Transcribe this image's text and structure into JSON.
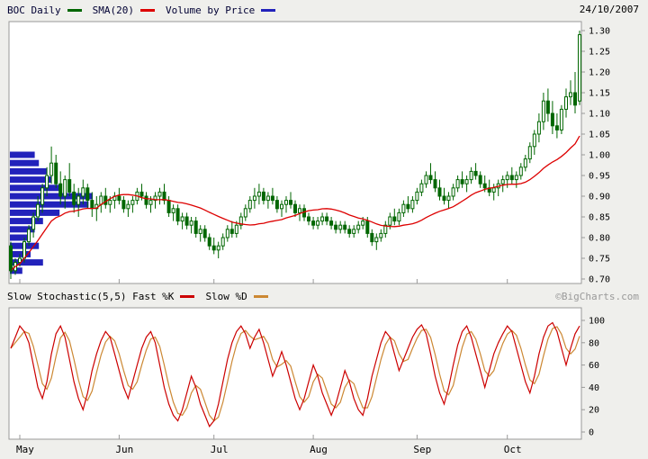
{
  "legend": {
    "symbol": "BOC Daily",
    "sma": "SMA(20)",
    "vbp": "Volume by Price",
    "date": "24/10/2007",
    "stoch": "Slow Stochastic(5,5) Fast %K",
    "slowd": "Slow %D",
    "credit": "©BigCharts.com"
  },
  "colors": {
    "candle": "#006600",
    "sma": "#dd0000",
    "vbp": "#2222bb",
    "stoch_k": "#cc0000",
    "stoch_d": "#cc8833",
    "border": "#999999",
    "plot_bg": "#ffffff",
    "page_bg": "#efefec",
    "axis_text": "#000000"
  },
  "chart_data": [
    {
      "type": "candlestick",
      "title": "BOC Daily with SMA(20) and Volume by Price",
      "ylim": [
        0.7,
        1.3
      ],
      "y_ticks": [
        1.3,
        1.25,
        1.2,
        1.15,
        1.1,
        1.05,
        1.0,
        0.95,
        0.9,
        0.85,
        0.8,
        0.75,
        0.7
      ],
      "sma_window": 20,
      "months": [
        {
          "label": "May",
          "index": 2
        },
        {
          "label": "Jun",
          "index": 24
        },
        {
          "label": "Jul",
          "index": 45
        },
        {
          "label": "Aug",
          "index": 67
        },
        {
          "label": "Sep",
          "index": 90
        },
        {
          "label": "Oct",
          "index": 110
        }
      ],
      "annotations": [
        {
          "type": "arrow-down",
          "index": 0,
          "price": 0.725
        }
      ],
      "vbp": [
        {
          "p": 1.0,
          "v": 0.3
        },
        {
          "p": 0.98,
          "v": 0.35
        },
        {
          "p": 0.96,
          "v": 0.45
        },
        {
          "p": 0.94,
          "v": 0.5
        },
        {
          "p": 0.92,
          "v": 0.6
        },
        {
          "p": 0.9,
          "v": 1.0
        },
        {
          "p": 0.88,
          "v": 0.95
        },
        {
          "p": 0.86,
          "v": 0.6
        },
        {
          "p": 0.84,
          "v": 0.4
        },
        {
          "p": 0.82,
          "v": 0.3
        },
        {
          "p": 0.8,
          "v": 0.25
        },
        {
          "p": 0.78,
          "v": 0.35
        },
        {
          "p": 0.76,
          "v": 0.25
        },
        {
          "p": 0.74,
          "v": 0.4
        },
        {
          "p": 0.72,
          "v": 0.15
        }
      ],
      "candles": [
        [
          0.78,
          0.79,
          0.7,
          0.72
        ],
        [
          0.72,
          0.75,
          0.71,
          0.74
        ],
        [
          0.74,
          0.76,
          0.73,
          0.75
        ],
        [
          0.75,
          0.8,
          0.74,
          0.79
        ],
        [
          0.79,
          0.83,
          0.78,
          0.82
        ],
        [
          0.82,
          0.86,
          0.8,
          0.85
        ],
        [
          0.85,
          0.9,
          0.84,
          0.88
        ],
        [
          0.88,
          0.93,
          0.86,
          0.92
        ],
        [
          0.92,
          0.97,
          0.9,
          0.95
        ],
        [
          0.95,
          1.02,
          0.93,
          0.98
        ],
        [
          0.98,
          1.0,
          0.92,
          0.93
        ],
        [
          0.93,
          0.96,
          0.88,
          0.9
        ],
        [
          0.9,
          0.95,
          0.87,
          0.94
        ],
        [
          0.94,
          0.98,
          0.9,
          0.91
        ],
        [
          0.91,
          0.93,
          0.86,
          0.88
        ],
        [
          0.88,
          0.92,
          0.85,
          0.9
        ],
        [
          0.9,
          0.94,
          0.88,
          0.92
        ],
        [
          0.92,
          0.93,
          0.87,
          0.89
        ],
        [
          0.89,
          0.91,
          0.85,
          0.87
        ],
        [
          0.87,
          0.9,
          0.84,
          0.88
        ],
        [
          0.88,
          0.91,
          0.86,
          0.9
        ],
        [
          0.9,
          0.92,
          0.87,
          0.88
        ],
        [
          0.88,
          0.9,
          0.86,
          0.89
        ],
        [
          0.89,
          0.91,
          0.87,
          0.9
        ],
        [
          0.9,
          0.92,
          0.88,
          0.89
        ],
        [
          0.89,
          0.9,
          0.86,
          0.87
        ],
        [
          0.87,
          0.89,
          0.85,
          0.88
        ],
        [
          0.88,
          0.9,
          0.86,
          0.89
        ],
        [
          0.89,
          0.92,
          0.88,
          0.91
        ],
        [
          0.91,
          0.93,
          0.89,
          0.9
        ],
        [
          0.9,
          0.91,
          0.87,
          0.88
        ],
        [
          0.88,
          0.9,
          0.86,
          0.89
        ],
        [
          0.89,
          0.91,
          0.87,
          0.9
        ],
        [
          0.9,
          0.92,
          0.88,
          0.91
        ],
        [
          0.91,
          0.93,
          0.88,
          0.89
        ],
        [
          0.89,
          0.9,
          0.85,
          0.86
        ],
        [
          0.86,
          0.88,
          0.84,
          0.87
        ],
        [
          0.87,
          0.88,
          0.83,
          0.84
        ],
        [
          0.84,
          0.86,
          0.82,
          0.85
        ],
        [
          0.85,
          0.86,
          0.82,
          0.83
        ],
        [
          0.83,
          0.85,
          0.81,
          0.84
        ],
        [
          0.84,
          0.85,
          0.8,
          0.81
        ],
        [
          0.81,
          0.83,
          0.79,
          0.82
        ],
        [
          0.82,
          0.83,
          0.79,
          0.8
        ],
        [
          0.8,
          0.81,
          0.77,
          0.78
        ],
        [
          0.78,
          0.8,
          0.76,
          0.77
        ],
        [
          0.77,
          0.79,
          0.75,
          0.78
        ],
        [
          0.78,
          0.81,
          0.77,
          0.8
        ],
        [
          0.8,
          0.83,
          0.79,
          0.82
        ],
        [
          0.82,
          0.84,
          0.8,
          0.81
        ],
        [
          0.81,
          0.84,
          0.8,
          0.83
        ],
        [
          0.83,
          0.86,
          0.82,
          0.85
        ],
        [
          0.85,
          0.88,
          0.84,
          0.87
        ],
        [
          0.87,
          0.9,
          0.86,
          0.89
        ],
        [
          0.89,
          0.92,
          0.87,
          0.9
        ],
        [
          0.9,
          0.93,
          0.88,
          0.91
        ],
        [
          0.91,
          0.92,
          0.88,
          0.89
        ],
        [
          0.89,
          0.91,
          0.87,
          0.9
        ],
        [
          0.9,
          0.92,
          0.88,
          0.89
        ],
        [
          0.89,
          0.9,
          0.86,
          0.87
        ],
        [
          0.87,
          0.89,
          0.85,
          0.88
        ],
        [
          0.88,
          0.9,
          0.86,
          0.89
        ],
        [
          0.89,
          0.91,
          0.87,
          0.88
        ],
        [
          0.88,
          0.89,
          0.85,
          0.86
        ],
        [
          0.86,
          0.88,
          0.84,
          0.87
        ],
        [
          0.87,
          0.88,
          0.84,
          0.85
        ],
        [
          0.85,
          0.86,
          0.83,
          0.84
        ],
        [
          0.84,
          0.85,
          0.82,
          0.83
        ],
        [
          0.83,
          0.85,
          0.82,
          0.84
        ],
        [
          0.84,
          0.86,
          0.83,
          0.85
        ],
        [
          0.85,
          0.86,
          0.83,
          0.84
        ],
        [
          0.84,
          0.85,
          0.82,
          0.83
        ],
        [
          0.83,
          0.84,
          0.81,
          0.82
        ],
        [
          0.82,
          0.84,
          0.81,
          0.83
        ],
        [
          0.83,
          0.84,
          0.81,
          0.82
        ],
        [
          0.82,
          0.83,
          0.8,
          0.81
        ],
        [
          0.81,
          0.83,
          0.8,
          0.82
        ],
        [
          0.82,
          0.84,
          0.81,
          0.83
        ],
        [
          0.83,
          0.85,
          0.82,
          0.84
        ],
        [
          0.84,
          0.85,
          0.8,
          0.81
        ],
        [
          0.81,
          0.82,
          0.78,
          0.79
        ],
        [
          0.79,
          0.81,
          0.77,
          0.8
        ],
        [
          0.8,
          0.82,
          0.79,
          0.81
        ],
        [
          0.81,
          0.84,
          0.8,
          0.83
        ],
        [
          0.83,
          0.86,
          0.82,
          0.85
        ],
        [
          0.85,
          0.87,
          0.83,
          0.84
        ],
        [
          0.84,
          0.87,
          0.83,
          0.86
        ],
        [
          0.86,
          0.89,
          0.85,
          0.88
        ],
        [
          0.88,
          0.9,
          0.86,
          0.87
        ],
        [
          0.87,
          0.9,
          0.86,
          0.89
        ],
        [
          0.89,
          0.92,
          0.88,
          0.91
        ],
        [
          0.91,
          0.94,
          0.9,
          0.93
        ],
        [
          0.93,
          0.96,
          0.92,
          0.95
        ],
        [
          0.95,
          0.98,
          0.93,
          0.94
        ],
        [
          0.94,
          0.96,
          0.91,
          0.92
        ],
        [
          0.92,
          0.94,
          0.89,
          0.9
        ],
        [
          0.9,
          0.92,
          0.88,
          0.89
        ],
        [
          0.89,
          0.91,
          0.87,
          0.9
        ],
        [
          0.9,
          0.93,
          0.89,
          0.92
        ],
        [
          0.92,
          0.95,
          0.91,
          0.94
        ],
        [
          0.94,
          0.96,
          0.92,
          0.93
        ],
        [
          0.93,
          0.95,
          0.91,
          0.94
        ],
        [
          0.94,
          0.97,
          0.93,
          0.96
        ],
        [
          0.96,
          0.98,
          0.94,
          0.95
        ],
        [
          0.95,
          0.96,
          0.92,
          0.93
        ],
        [
          0.93,
          0.95,
          0.91,
          0.92
        ],
        [
          0.92,
          0.94,
          0.9,
          0.91
        ],
        [
          0.91,
          0.93,
          0.89,
          0.92
        ],
        [
          0.92,
          0.94,
          0.9,
          0.93
        ],
        [
          0.93,
          0.95,
          0.91,
          0.94
        ],
        [
          0.94,
          0.96,
          0.92,
          0.95
        ],
        [
          0.95,
          0.97,
          0.93,
          0.94
        ],
        [
          0.94,
          0.96,
          0.92,
          0.95
        ],
        [
          0.95,
          0.98,
          0.94,
          0.97
        ],
        [
          0.97,
          1.0,
          0.96,
          0.99
        ],
        [
          0.99,
          1.03,
          0.98,
          1.02
        ],
        [
          1.02,
          1.06,
          1.0,
          1.05
        ],
        [
          1.05,
          1.1,
          1.03,
          1.08
        ],
        [
          1.08,
          1.15,
          1.06,
          1.13
        ],
        [
          1.13,
          1.16,
          1.08,
          1.1
        ],
        [
          1.1,
          1.13,
          1.05,
          1.07
        ],
        [
          1.07,
          1.1,
          1.04,
          1.06
        ],
        [
          1.06,
          1.12,
          1.05,
          1.11
        ],
        [
          1.11,
          1.16,
          1.09,
          1.14
        ],
        [
          1.14,
          1.18,
          1.12,
          1.15
        ],
        [
          1.15,
          1.2,
          1.1,
          1.12
        ],
        [
          1.13,
          1.3,
          1.12,
          1.29
        ]
      ]
    },
    {
      "type": "line",
      "title": "Slow Stochastic(5,5)",
      "ylim": [
        0,
        100
      ],
      "y_ticks": [
        100,
        80,
        60,
        40,
        20,
        0
      ],
      "d_smooth": 3,
      "series": [
        {
          "name": "Fast %K",
          "values": [
            75,
            85,
            95,
            90,
            80,
            60,
            40,
            30,
            45,
            70,
            88,
            95,
            85,
            65,
            45,
            30,
            20,
            35,
            55,
            70,
            82,
            90,
            85,
            70,
            55,
            40,
            30,
            45,
            60,
            75,
            85,
            90,
            80,
            60,
            40,
            25,
            15,
            10,
            20,
            35,
            50,
            40,
            25,
            15,
            5,
            10,
            25,
            45,
            65,
            80,
            90,
            95,
            88,
            75,
            85,
            92,
            80,
            65,
            50,
            60,
            72,
            60,
            45,
            30,
            20,
            30,
            45,
            60,
            50,
            35,
            25,
            15,
            25,
            40,
            55,
            45,
            30,
            20,
            15,
            30,
            50,
            65,
            80,
            90,
            85,
            70,
            55,
            65,
            75,
            85,
            92,
            96,
            88,
            70,
            50,
            35,
            25,
            40,
            60,
            78,
            90,
            95,
            85,
            70,
            55,
            40,
            55,
            70,
            80,
            88,
            95,
            90,
            75,
            60,
            45,
            35,
            50,
            70,
            85,
            95,
            98,
            90,
            75,
            60,
            75,
            88,
            95
          ]
        },
        {
          "name": "Slow %D",
          "derived_from": "Fast %K",
          "smoothing": 3
        }
      ]
    }
  ]
}
